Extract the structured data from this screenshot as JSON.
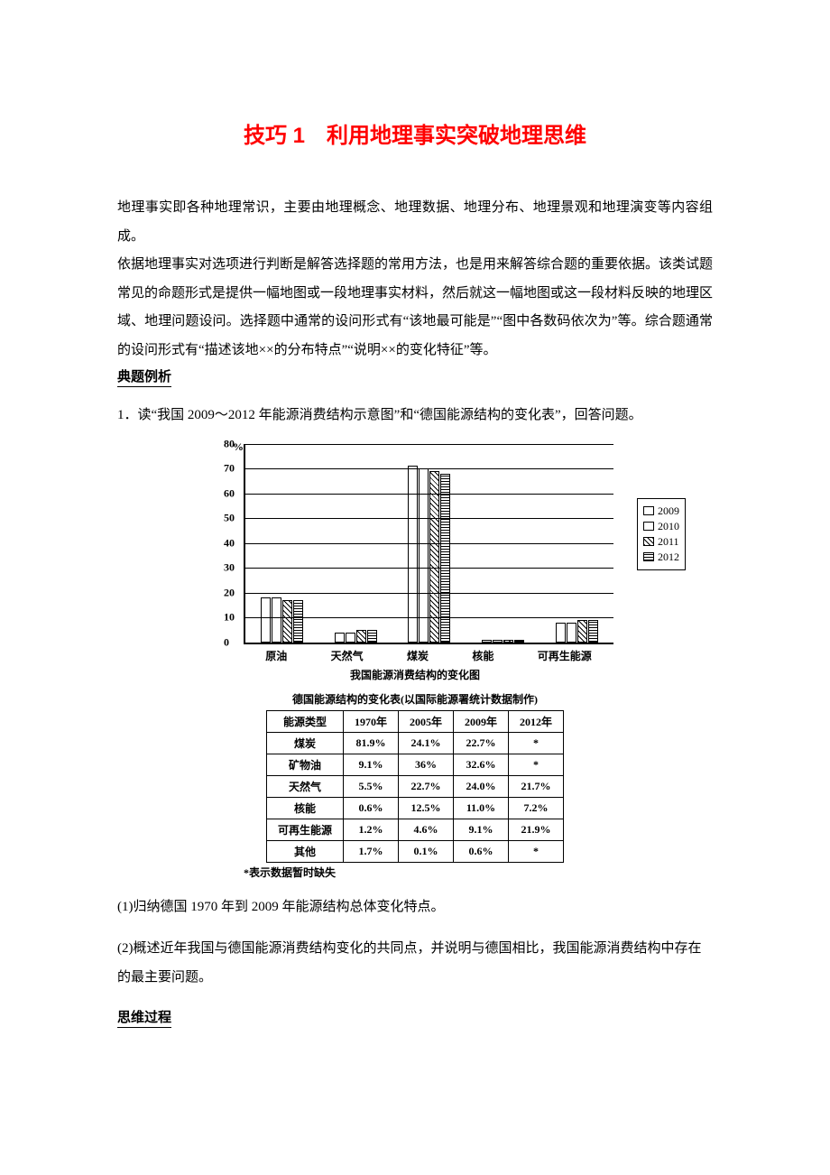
{
  "title": "技巧 1　利用地理事实突破地理思维",
  "intro": "地理事实即各种地理常识，主要由地理概念、地理数据、地理分布、地理景观和地理演变等内容组成。\n依据地理事实对选项进行判断是解答选择题的常用方法，也是用来解答综合题的重要依据。该类试题常见的命题形式是提供一幅地图或一段地理事实材料，然后就这一幅地图或这一段材料反映的地理区域、地理问题设问。选择题中通常的设问形式有“该地最可能是”“图中各数码依次为”等。综合题通常的设问形式有“描述该地××的分布特点”“说明××的变化特征”等。",
  "section_label_1": "典题例析",
  "question_stem": "1．读“我国 2009～2012 年能源消费结构示意图”和“德国能源结构的变化表”，回答问题。",
  "chart": {
    "type": "bar",
    "unit": "%",
    "ymax": 80,
    "ytick_step": 10,
    "categories": [
      "原油",
      "天然气",
      "煤炭",
      "核能",
      "可再生能源"
    ],
    "years": [
      "2009",
      "2010",
      "2011",
      "2012"
    ],
    "year_patterns": [
      "p2009",
      "p2010",
      "p2011",
      "p2012"
    ],
    "values": {
      "原油": [
        18,
        18,
        17,
        17
      ],
      "天然气": [
        4,
        4,
        5,
        5
      ],
      "煤炭": [
        71,
        70,
        69,
        68
      ],
      "核能": [
        1,
        1,
        1,
        1
      ],
      "可再生能源": [
        8,
        8,
        9,
        9
      ]
    },
    "caption": "我国能源消费结构的变化图",
    "legend_labels": [
      "2009",
      "2010",
      "2011",
      "2012"
    ]
  },
  "table": {
    "title": "德国能源结构的变化表(以国际能源署统计数据制作)",
    "columns": [
      "能源类型",
      "1970年",
      "2005年",
      "2009年",
      "2012年"
    ],
    "rows": [
      [
        "煤炭",
        "81.9%",
        "24.1%",
        "22.7%",
        "*"
      ],
      [
        "矿物油",
        "9.1%",
        "36%",
        "32.6%",
        "*"
      ],
      [
        "天然气",
        "5.5%",
        "22.7%",
        "24.0%",
        "21.7%"
      ],
      [
        "核能",
        "0.6%",
        "12.5%",
        "11.0%",
        "7.2%"
      ],
      [
        "可再生能源",
        "1.2%",
        "4.6%",
        "9.1%",
        "21.9%"
      ],
      [
        "其他",
        "1.7%",
        "0.1%",
        "0.6%",
        "*"
      ]
    ],
    "note": "*表示数据暂时缺失"
  },
  "subq1": "(1)归纳德国 1970 年到 2009 年能源结构总体变化特点。",
  "subq2": "(2)概述近年我国与德国能源消费结构变化的共同点，并说明与德国相比，我国能源消费结构中存在的最主要问题。",
  "section_label_2": "思维过程"
}
